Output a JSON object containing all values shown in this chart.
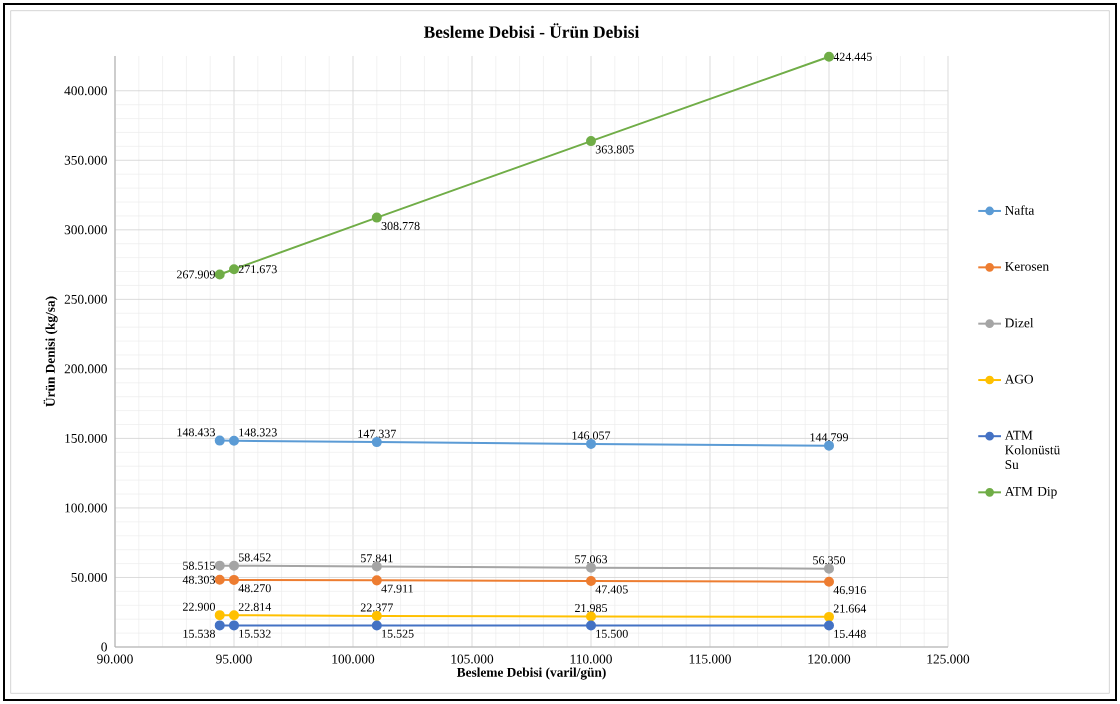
{
  "chart_data": {
    "type": "line",
    "title": "Besleme Debisi - Ürün Debisi",
    "xlabel": "Besleme Debisi (varil/gün)",
    "ylabel": "Ürün Denisi (kg/sa)",
    "x": [
      94400,
      95000,
      101000,
      110000,
      120000
    ],
    "series": [
      {
        "name": "Nafta",
        "color": "#5b9bd5",
        "values": [
          148433,
          148323,
          147337,
          146057,
          144799
        ],
        "value_labels": [
          "148.433",
          "148.323",
          "147.337",
          "146.057",
          "144.799"
        ]
      },
      {
        "name": "Kerosen",
        "color": "#ed7d31",
        "values": [
          48303,
          48270,
          47911,
          47405,
          46916
        ],
        "value_labels": [
          "48.303",
          "48.270",
          "47.911",
          "47.405",
          "46.916"
        ]
      },
      {
        "name": "Dizel",
        "color": "#a5a5a5",
        "values": [
          58515,
          58452,
          57841,
          57063,
          56350
        ],
        "value_labels": [
          "58.515",
          "58.452",
          "57.841",
          "57.063",
          "56.350"
        ]
      },
      {
        "name": "AGO",
        "color": "#ffc000",
        "values": [
          22900,
          22814,
          22377,
          21985,
          21664
        ],
        "value_labels": [
          "22.900",
          "22.814",
          "22.377",
          "21.985",
          "21.664"
        ]
      },
      {
        "name": "ATM Kolonüstü Su",
        "color": "#4472c4",
        "values": [
          15538,
          15532,
          15525,
          15500,
          15448
        ],
        "value_labels": [
          "15.538",
          "15.532",
          "15.525",
          "15.500",
          "15.448"
        ]
      },
      {
        "name": "ATM Dip",
        "color": "#70ad47",
        "values": [
          267909,
          271673,
          308778,
          363805,
          424445
        ],
        "value_labels": [
          "267.909",
          "271.673",
          "308.778",
          "363.805",
          "424.445"
        ]
      }
    ],
    "xlim": [
      90000,
      125000
    ],
    "ylim": [
      0,
      425000
    ],
    "xticks": [
      {
        "value": 90000,
        "label": "90.000"
      },
      {
        "value": 95000,
        "label": "95.000"
      },
      {
        "value": 100000,
        "label": "100.000"
      },
      {
        "value": 105000,
        "label": "105.000"
      },
      {
        "value": 110000,
        "label": "110.000"
      },
      {
        "value": 115000,
        "label": "115.000"
      },
      {
        "value": 120000,
        "label": "120.000"
      },
      {
        "value": 125000,
        "label": "125.000"
      }
    ],
    "yticks": [
      0,
      {
        "value": 50000,
        "label": "50.000"
      },
      {
        "value": 100000,
        "label": "100.000"
      },
      {
        "value": 150000,
        "label": "150.000"
      },
      {
        "value": 200000,
        "label": "200.000"
      },
      {
        "value": 250000,
        "label": "250.000"
      },
      {
        "value": 300000,
        "label": "300.000"
      },
      {
        "value": 350000,
        "label": "350.000"
      },
      {
        "value": 400000,
        "label": "400.000"
      }
    ],
    "grid": true,
    "legend": "right",
    "marker": "circle"
  }
}
